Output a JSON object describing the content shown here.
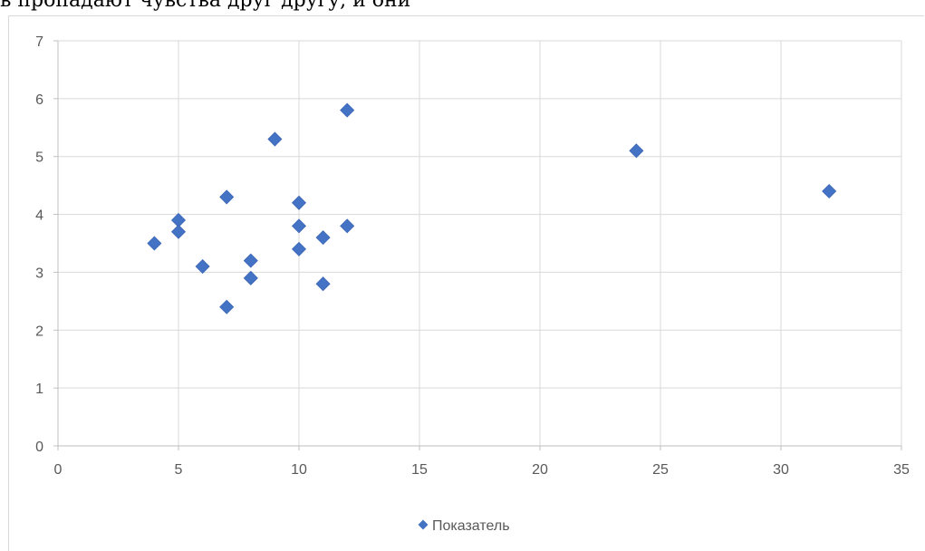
{
  "top_text": "в пропадают чувства друг другу, и они",
  "chart_data": {
    "type": "scatter",
    "title": "",
    "xlabel": "",
    "ylabel": "",
    "xlim": [
      0,
      35
    ],
    "ylim": [
      0,
      7
    ],
    "x_ticks": [
      0,
      5,
      10,
      15,
      20,
      25,
      30,
      35
    ],
    "y_ticks": [
      0,
      1,
      2,
      3,
      4,
      5,
      6,
      7
    ],
    "grid": true,
    "legend_position": "bottom",
    "series": [
      {
        "name": "Показатель",
        "color": "#4472c4",
        "marker": "diamond",
        "points": [
          {
            "x": 4,
            "y": 3.5
          },
          {
            "x": 5,
            "y": 3.9
          },
          {
            "x": 5,
            "y": 3.7
          },
          {
            "x": 6,
            "y": 3.1
          },
          {
            "x": 7,
            "y": 4.3
          },
          {
            "x": 7,
            "y": 2.4
          },
          {
            "x": 8,
            "y": 3.2
          },
          {
            "x": 8,
            "y": 2.9
          },
          {
            "x": 9,
            "y": 5.3
          },
          {
            "x": 10,
            "y": 4.2
          },
          {
            "x": 10,
            "y": 3.8
          },
          {
            "x": 10,
            "y": 3.4
          },
          {
            "x": 11,
            "y": 3.6
          },
          {
            "x": 11,
            "y": 2.8
          },
          {
            "x": 12,
            "y": 5.8
          },
          {
            "x": 12,
            "y": 3.8
          },
          {
            "x": 24,
            "y": 5.1
          },
          {
            "x": 32,
            "y": 4.4
          }
        ]
      }
    ]
  }
}
